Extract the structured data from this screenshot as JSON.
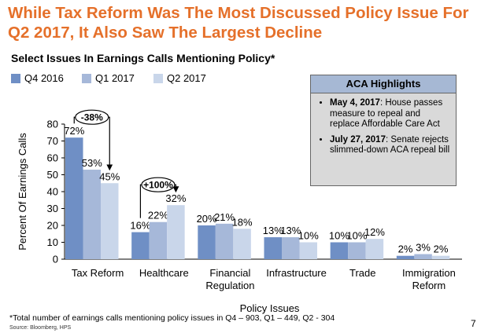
{
  "title": "While Tax Reform Was The Most Discussed Policy Issue For Q2 2017, It Also Saw The Largest Decline",
  "subtitle": "Select Issues In Earnings Calls Mentioning Policy*",
  "colors": {
    "title": "#E5702A",
    "series": [
      "#6F8FC5",
      "#A6B8D9",
      "#C9D6EA"
    ]
  },
  "chart_data": {
    "type": "bar",
    "categories": [
      "Tax Reform",
      "Healthcare",
      "Financial Regulation",
      "Infrastructure",
      "Trade",
      "Immigration Reform"
    ],
    "category_lines": [
      [
        "Tax Reform"
      ],
      [
        "Healthcare"
      ],
      [
        "Financial",
        "Regulation"
      ],
      [
        "Infrastructure"
      ],
      [
        "Trade"
      ],
      [
        "Immigration",
        "Reform"
      ]
    ],
    "series": [
      {
        "name": "Q4 2016",
        "values": [
          72,
          16,
          20,
          13,
          10,
          2
        ]
      },
      {
        "name": "Q1 2017",
        "values": [
          53,
          22,
          21,
          13,
          10,
          3
        ]
      },
      {
        "name": "Q2 2017",
        "values": [
          45,
          32,
          18,
          10,
          12,
          2
        ]
      }
    ],
    "value_labels": [
      [
        "72%",
        "53%",
        "45%"
      ],
      [
        "16%",
        "22%",
        "32%"
      ],
      [
        "20%",
        "21%",
        "18%"
      ],
      [
        "13%",
        "13%",
        "10%"
      ],
      [
        "10%",
        "10%",
        "12%"
      ],
      [
        "2%",
        "3%",
        "2%"
      ]
    ],
    "xlabel": "Policy Issues",
    "ylabel": "Percent Of Earnings Calls",
    "ylim": [
      0,
      80
    ],
    "yticks": [
      0,
      10,
      20,
      30,
      40,
      50,
      60,
      70,
      80
    ],
    "legend_position": "top-left",
    "grid": false,
    "annotations": [
      {
        "label": "-38%",
        "category": "Tax Reform",
        "from": "Q4 2016",
        "to": "Q2 2017"
      },
      {
        "label": "+100%",
        "category": "Healthcare",
        "from": "Q4 2016",
        "to": "Q2 2017"
      }
    ]
  },
  "aca_box": {
    "header": "ACA Highlights",
    "items": [
      {
        "date": "May 4, 2017",
        "text": ": House passes measure to repeal and replace Affordable Care Act"
      },
      {
        "date": "July 27, 2017",
        "text": ": Senate rejects slimmed-down ACA repeal bill"
      }
    ]
  },
  "footnote": "*Total number of earnings calls mentioning policy issues in Q4 – 903, Q1 – 449, Q2 - 304",
  "source": "Source: Bloomberg, HPS",
  "page_number": "7"
}
